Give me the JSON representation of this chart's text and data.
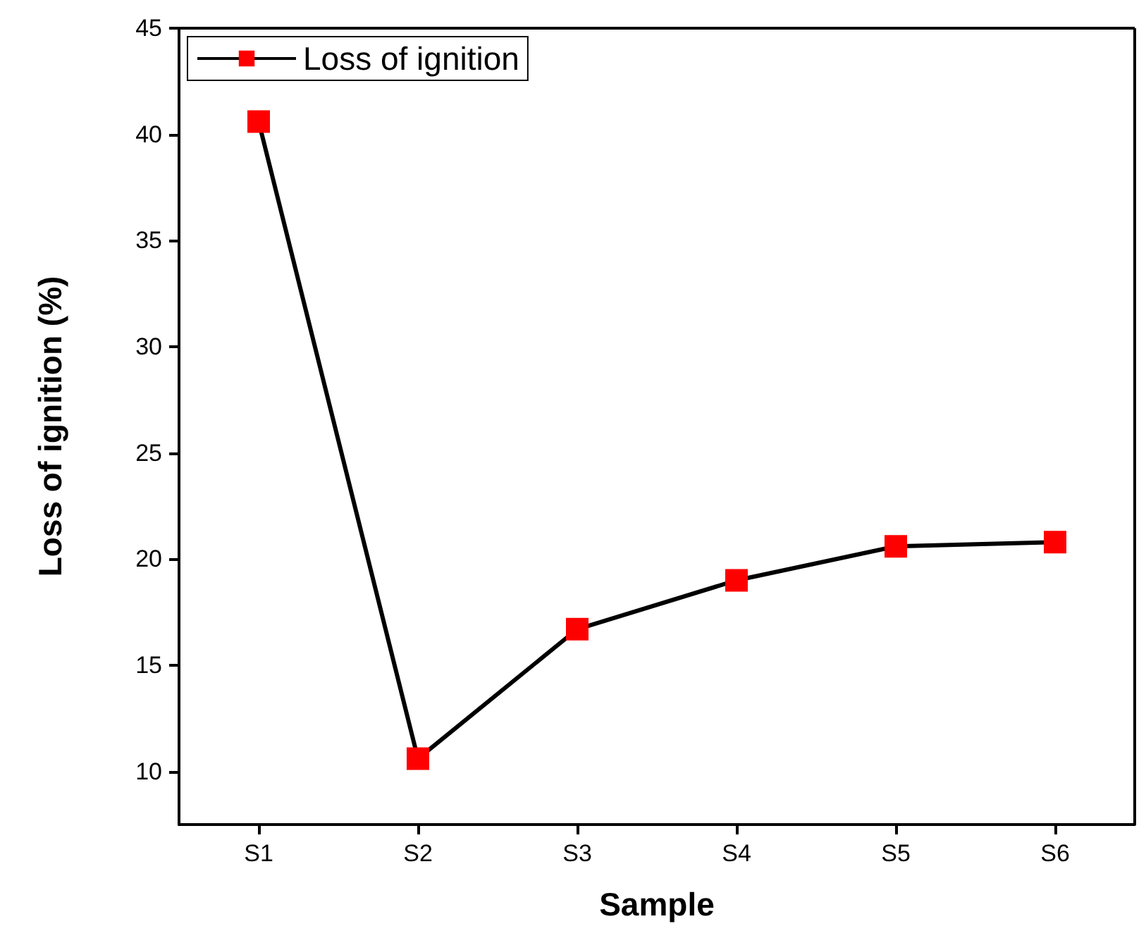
{
  "chart_data": {
    "type": "line",
    "xlabel": "Sample",
    "ylabel": "Loss of ignition (%)",
    "categories": [
      "S1",
      "S2",
      "S3",
      "S4",
      "S5",
      "S6"
    ],
    "series": [
      {
        "name": "Loss of ignition",
        "color": "#ff0000",
        "values": [
          40.6,
          10.6,
          16.7,
          19.0,
          20.6,
          20.8
        ]
      }
    ],
    "ylim": [
      7.5,
      45
    ],
    "yticks": [
      10,
      15,
      20,
      25,
      30,
      35,
      40,
      45
    ],
    "grid": false,
    "legend": "top left",
    "marker": "square",
    "line_style": "solid"
  }
}
